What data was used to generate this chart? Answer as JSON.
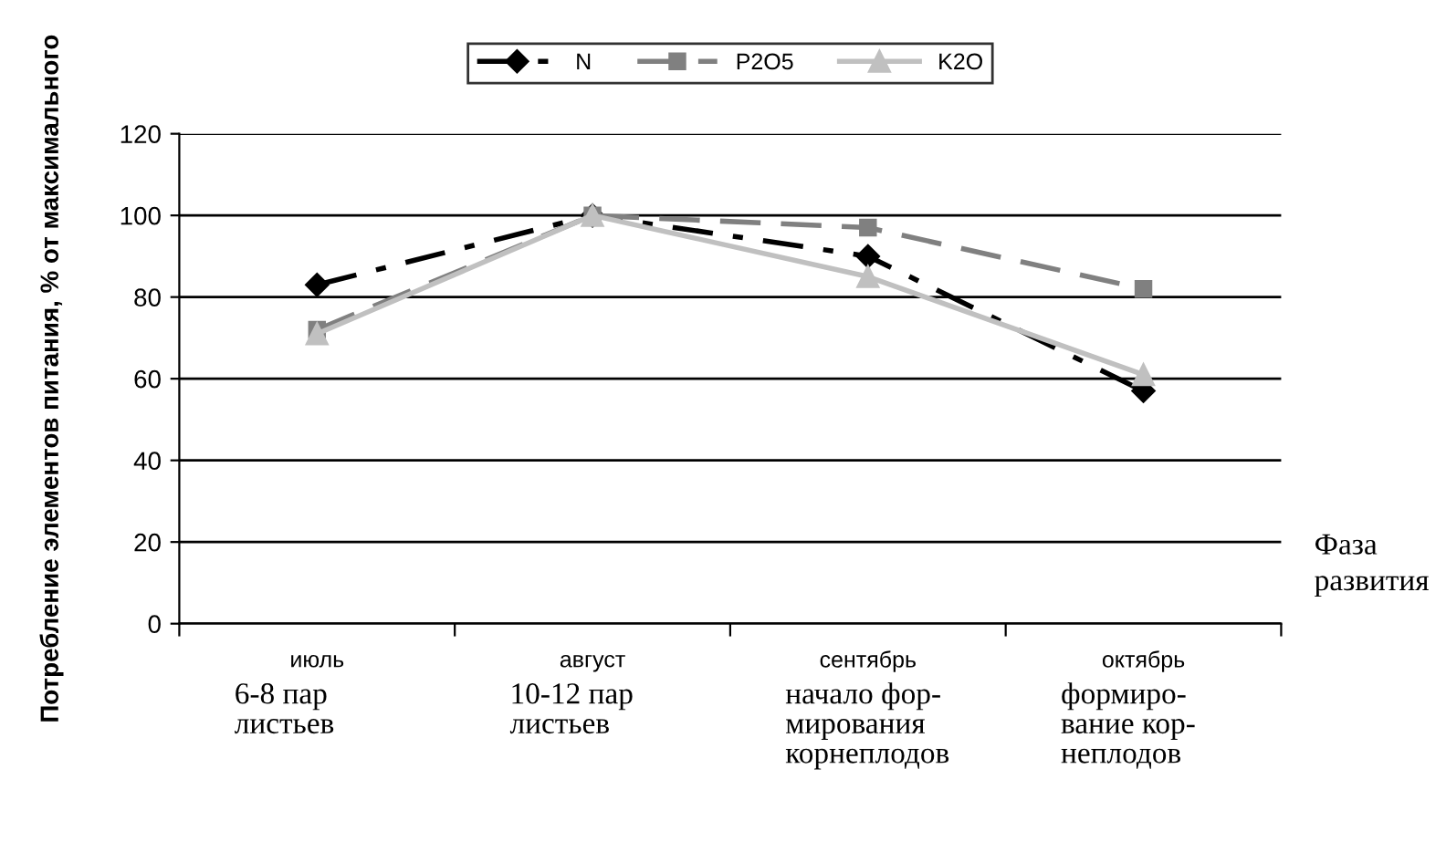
{
  "chart_data": {
    "type": "line",
    "ylabel": "Потребление элементов питания, % от максимального",
    "xlabel": "Фаза\nразвития",
    "categories": [
      "июль\n6-8 пар\nлистьев",
      "август\n10-12 пар\nлистьев",
      "сентябрь\nначало фор-\nмирования\nкорнеплодов",
      "октябрь\nформиро-\nвание кор-\nнеплодов"
    ],
    "series": [
      {
        "name": "N",
        "color": "#000000",
        "values": [
          83,
          100,
          90,
          57
        ],
        "marker": "diamond",
        "line_style": "dashdot"
      },
      {
        "name": "P2O5",
        "color": "#808080",
        "values": [
          72,
          100,
          97,
          82
        ],
        "marker": "square",
        "line_style": "dashed"
      },
      {
        "name": "K2O",
        "color": "#c0c0c0",
        "values": [
          71,
          100,
          85,
          61
        ],
        "marker": "triangle",
        "line_style": "solid"
      }
    ],
    "ylim": [
      0,
      120
    ],
    "yticks": [
      0,
      20,
      40,
      60,
      80,
      100,
      120
    ],
    "grid": "y",
    "legend": "top"
  }
}
